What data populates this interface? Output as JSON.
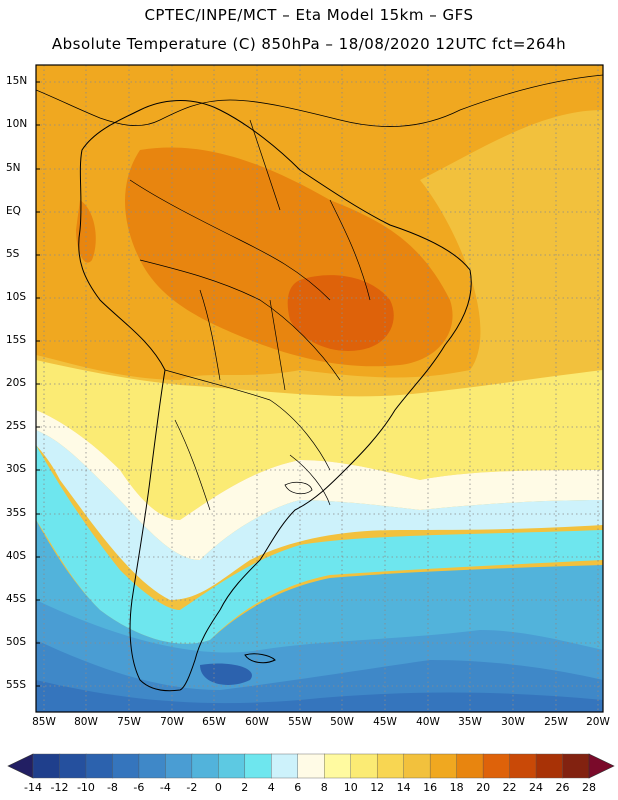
{
  "header": {
    "line1": "CPTEC/INPE/MCT –  Eta Model 15km – GFS",
    "line2": "Absolute Temperature (C) 850hPa – 18/08/2020 12UTC fct=264h"
  },
  "map": {
    "lat_labels": [
      "15N",
      "10N",
      "5N",
      "EQ",
      "5S",
      "10S",
      "15S",
      "20S",
      "25S",
      "30S",
      "35S",
      "40S",
      "45S",
      "50S",
      "55S"
    ],
    "lon_labels": [
      "85W",
      "80W",
      "75W",
      "70W",
      "65W",
      "60W",
      "55W",
      "50W",
      "45W",
      "40W",
      "35W",
      "30W",
      "25W",
      "20W"
    ]
  },
  "colorbar": {
    "colors": [
      "#1f3f8c",
      "#25509e",
      "#2c62ae",
      "#3575bd",
      "#3f88c8",
      "#4a9dd3",
      "#52b3db",
      "#5dc9e2",
      "#6ee6ee",
      "#cdf2fb",
      "#fffbe6",
      "#fffaa0",
      "#fbeb74",
      "#f8d652",
      "#f2c13d",
      "#f0a820",
      "#e8850f",
      "#de620a",
      "#c94907",
      "#a83206",
      "#822210"
    ],
    "labels": [
      "-14",
      "-12",
      "-10",
      "-8",
      "-6",
      "-4",
      "-2",
      "0",
      "2",
      "4",
      "6",
      "8",
      "10",
      "12",
      "14",
      "16",
      "18",
      "20",
      "22",
      "24",
      "26",
      "28"
    ],
    "low_arrow_color": "#221f63",
    "high_arrow_color": "#7a0a2a"
  }
}
